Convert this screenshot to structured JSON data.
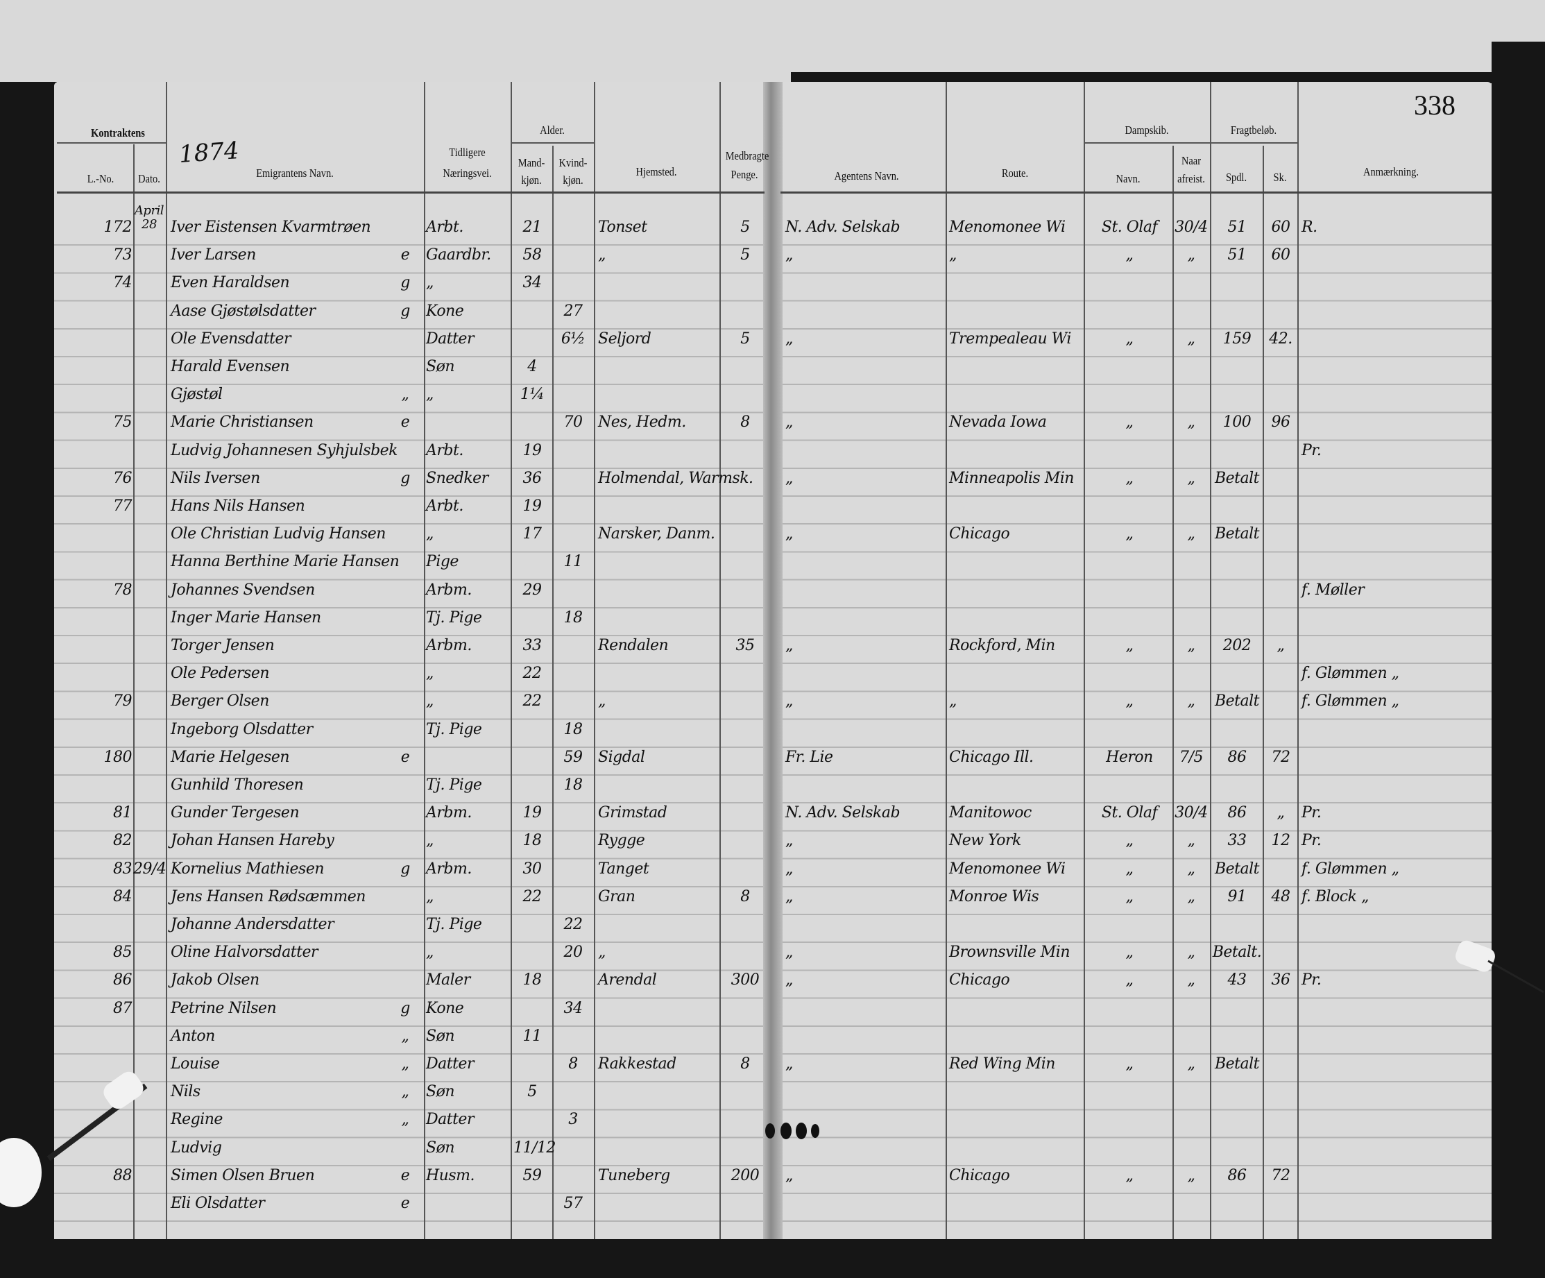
{
  "page_number": "338",
  "year": "1874",
  "headers": {
    "kontraktens": "Kontraktens",
    "l_no": "L.-No.",
    "dato": "Dato.",
    "navn": "Emigrantens Navn.",
    "tidligere": "Tidligere",
    "naeringsvei": "Næringsvei.",
    "alder": "Alder.",
    "mand": "Mand-",
    "mand2": "kjøn.",
    "kvind": "Kvind-",
    "kvind2": "kjøn.",
    "hjemsted": "Hjemsted.",
    "medbragte": "Medbragte",
    "penge": "Penge.",
    "agent": "Agentens Navn.",
    "route": "Route.",
    "dampskib": "Dampskib.",
    "skib_navn": "Navn.",
    "naar": "Naar",
    "afreist": "afreist.",
    "fragtbelob": "Fragtbeløb.",
    "spdl": "Spdl.",
    "sk": "Sk.",
    "anmaerkning": "Anmærkning."
  },
  "rows": [
    {
      "no": "172",
      "date": "April 28",
      "name": "Iver Eistensen Kvarmtrøen",
      "mark": "",
      "occ": "Arbt.",
      "male": "21",
      "female": "",
      "home": "Tonset",
      "money": "5",
      "agent": "N. Adv. Selskab",
      "route": "Menomonee Wi",
      "ship": "St. Olaf",
      "dep": "30/4",
      "spdl": "51",
      "sk": "60",
      "note": "R."
    },
    {
      "no": "73",
      "date": "",
      "name": "Iver Larsen",
      "mark": "e",
      "occ": "Gaardbr.",
      "male": "58",
      "female": "",
      "home": "„",
      "money": "5",
      "agent": "„",
      "route": "„",
      "ship": "„",
      "dep": "„",
      "spdl": "51",
      "sk": "60",
      "note": ""
    },
    {
      "no": "74",
      "date": "",
      "name": "Even Haraldsen",
      "mark": "g",
      "occ": "„",
      "male": "34",
      "female": "",
      "home": "",
      "money": "",
      "agent": "",
      "route": "",
      "ship": "",
      "dep": "",
      "spdl": "",
      "sk": "",
      "note": ""
    },
    {
      "no": "",
      "date": "",
      "name": "Aase Gjøstølsdatter",
      "mark": "g",
      "occ": "Kone",
      "male": "",
      "female": "27",
      "home": "",
      "money": "",
      "agent": "",
      "route": "",
      "ship": "",
      "dep": "",
      "spdl": "",
      "sk": "",
      "note": ""
    },
    {
      "no": "",
      "date": "",
      "name": "Ole Evensdatter",
      "mark": "",
      "occ": "Datter",
      "male": "",
      "female": "6½",
      "home": "Seljord",
      "money": "5",
      "agent": "„",
      "route": "Trempealeau Wi",
      "ship": "„",
      "dep": "„",
      "spdl": "159",
      "sk": "42.",
      "note": ""
    },
    {
      "no": "",
      "date": "",
      "name": "Harald Evensen",
      "mark": "",
      "occ": "Søn",
      "male": "4",
      "female": "",
      "home": "",
      "money": "",
      "agent": "",
      "route": "",
      "ship": "",
      "dep": "",
      "spdl": "",
      "sk": "",
      "note": ""
    },
    {
      "no": "",
      "date": "",
      "name": "Gjøstøl",
      "mark": "„",
      "occ": "„",
      "male": "1¼",
      "female": "",
      "home": "",
      "money": "",
      "agent": "",
      "route": "",
      "ship": "",
      "dep": "",
      "spdl": "",
      "sk": "",
      "note": ""
    },
    {
      "no": "75",
      "date": "",
      "name": "Marie Christiansen",
      "mark": "e",
      "occ": "",
      "male": "",
      "female": "70",
      "home": "Nes, Hedm.",
      "money": "8",
      "agent": "„",
      "route": "Nevada Iowa",
      "ship": "„",
      "dep": "„",
      "spdl": "100",
      "sk": "96",
      "note": ""
    },
    {
      "no": "",
      "date": "",
      "name": "Ludvig Johannesen Syhjulsbek",
      "mark": "",
      "occ": "Arbt.",
      "male": "19",
      "female": "",
      "home": "",
      "money": "",
      "agent": "",
      "route": "",
      "ship": "",
      "dep": "",
      "spdl": "",
      "sk": "",
      "note": "Pr."
    },
    {
      "no": "76",
      "date": "",
      "name": "Nils Iversen",
      "mark": "g",
      "occ": "Snedker",
      "male": "36",
      "female": "",
      "home": "Holmendal, Warmsk.",
      "money": "",
      "agent": "„",
      "route": "Minneapolis Min",
      "ship": "„",
      "dep": "„",
      "spdl": "Betalt",
      "sk": "",
      "note": ""
    },
    {
      "no": "77",
      "date": "",
      "name": "Hans Nils Hansen",
      "mark": "",
      "occ": "Arbt.",
      "male": "19",
      "female": "",
      "home": "",
      "money": "",
      "agent": "",
      "route": "",
      "ship": "",
      "dep": "",
      "spdl": "",
      "sk": "",
      "note": ""
    },
    {
      "no": "",
      "date": "",
      "name": "Ole Christian Ludvig Hansen",
      "mark": "",
      "occ": "„",
      "male": "17",
      "female": "",
      "home": "Narsker, Danm.",
      "money": "",
      "agent": "„",
      "route": "Chicago",
      "ship": "„",
      "dep": "„",
      "spdl": "Betalt",
      "sk": "",
      "note": ""
    },
    {
      "no": "",
      "date": "",
      "name": "Hanna Berthine Marie Hansen",
      "mark": "",
      "occ": "Pige",
      "male": "",
      "female": "11",
      "home": "",
      "money": "",
      "agent": "",
      "route": "",
      "ship": "",
      "dep": "",
      "spdl": "",
      "sk": "",
      "note": ""
    },
    {
      "no": "78",
      "date": "",
      "name": "Johannes Svendsen",
      "mark": "",
      "occ": "Arbm.",
      "male": "29",
      "female": "",
      "home": "",
      "money": "",
      "agent": "",
      "route": "",
      "ship": "",
      "dep": "",
      "spdl": "",
      "sk": "",
      "note": "f. Møller"
    },
    {
      "no": "",
      "date": "",
      "name": "Inger Marie Hansen",
      "mark": "",
      "occ": "Tj. Pige",
      "male": "",
      "female": "18",
      "home": "",
      "money": "",
      "agent": "",
      "route": "",
      "ship": "",
      "dep": "",
      "spdl": "",
      "sk": "",
      "note": ""
    },
    {
      "no": "",
      "date": "",
      "name": "Torger Jensen",
      "mark": "",
      "occ": "Arbm.",
      "male": "33",
      "female": "",
      "home": "Rendalen",
      "money": "35",
      "agent": "„",
      "route": "Rockford, Min",
      "ship": "„",
      "dep": "„",
      "spdl": "202",
      "sk": "„",
      "note": ""
    },
    {
      "no": "",
      "date": "",
      "name": "Ole Pedersen",
      "mark": "",
      "occ": "„",
      "male": "22",
      "female": "",
      "home": "",
      "money": "",
      "agent": "",
      "route": "",
      "ship": "",
      "dep": "",
      "spdl": "",
      "sk": "",
      "note": "f. Glømmen „"
    },
    {
      "no": "79",
      "date": "",
      "name": "Berger Olsen",
      "mark": "",
      "occ": "„",
      "male": "22",
      "female": "",
      "home": "„",
      "money": "",
      "agent": "„",
      "route": "„",
      "ship": "„",
      "dep": "„",
      "spdl": "Betalt",
      "sk": "",
      "note": "f. Glømmen „"
    },
    {
      "no": "",
      "date": "",
      "name": "Ingeborg Olsdatter",
      "mark": "",
      "occ": "Tj. Pige",
      "male": "",
      "female": "18",
      "home": "",
      "money": "",
      "agent": "",
      "route": "",
      "ship": "",
      "dep": "",
      "spdl": "",
      "sk": "",
      "note": ""
    },
    {
      "no": "180",
      "date": "",
      "name": "Marie Helgesen",
      "mark": "e",
      "occ": "",
      "male": "",
      "female": "59",
      "home": "Sigdal",
      "money": "",
      "agent": "Fr. Lie",
      "route": "Chicago Ill.",
      "ship": "Heron",
      "dep": "7/5",
      "spdl": "86",
      "sk": "72",
      "note": ""
    },
    {
      "no": "",
      "date": "",
      "name": "Gunhild Thoresen",
      "mark": "",
      "occ": "Tj. Pige",
      "male": "",
      "female": "18",
      "home": "",
      "money": "",
      "agent": "",
      "route": "",
      "ship": "",
      "dep": "",
      "spdl": "",
      "sk": "",
      "note": ""
    },
    {
      "no": "81",
      "date": "",
      "name": "Gunder Tergesen",
      "mark": "",
      "occ": "Arbm.",
      "male": "19",
      "female": "",
      "home": "Grimstad",
      "money": "",
      "agent": "N. Adv. Selskab",
      "route": "Manitowoc",
      "ship": "St. Olaf",
      "dep": "30/4",
      "spdl": "86",
      "sk": "„",
      "note": "Pr."
    },
    {
      "no": "82",
      "date": "",
      "name": "Johan Hansen Hareby",
      "mark": "",
      "occ": "„",
      "male": "18",
      "female": "",
      "home": "Rygge",
      "money": "",
      "agent": "„",
      "route": "New York",
      "ship": "„",
      "dep": "„",
      "spdl": "33",
      "sk": "12",
      "note": "Pr."
    },
    {
      "no": "83",
      "date": "29/4",
      "name": "Kornelius Mathiesen",
      "mark": "g",
      "occ": "Arbm.",
      "male": "30",
      "female": "",
      "home": "Tanget",
      "money": "",
      "agent": "„",
      "route": "Menomonee Wi",
      "ship": "„",
      "dep": "„",
      "spdl": "Betalt",
      "sk": "",
      "note": "f. Glømmen „"
    },
    {
      "no": "84",
      "date": "",
      "name": "Jens Hansen Rødsæmmen",
      "mark": "",
      "occ": "„",
      "male": "22",
      "female": "",
      "home": "Gran",
      "money": "8",
      "agent": "„",
      "route": "Monroe Wis",
      "ship": "„",
      "dep": "„",
      "spdl": "91",
      "sk": "48",
      "note": "f. Block „"
    },
    {
      "no": "",
      "date": "",
      "name": "Johanne Andersdatter",
      "mark": "",
      "occ": "Tj. Pige",
      "male": "",
      "female": "22",
      "home": "",
      "money": "",
      "agent": "",
      "route": "",
      "ship": "",
      "dep": "",
      "spdl": "",
      "sk": "",
      "note": ""
    },
    {
      "no": "85",
      "date": "",
      "name": "Oline Halvorsdatter",
      "mark": "",
      "occ": "„",
      "male": "",
      "female": "20",
      "home": "„",
      "money": "",
      "agent": "„",
      "route": "Brownsville Min",
      "ship": "„",
      "dep": "„",
      "spdl": "Betalt.",
      "sk": "",
      "note": ""
    },
    {
      "no": "86",
      "date": "",
      "name": "Jakob Olsen",
      "mark": "",
      "occ": "Maler",
      "male": "18",
      "female": "",
      "home": "Arendal",
      "money": "300",
      "agent": "„",
      "route": "Chicago",
      "ship": "„",
      "dep": "„",
      "spdl": "43",
      "sk": "36",
      "note": "Pr."
    },
    {
      "no": "87",
      "date": "",
      "name": "Petrine Nilsen",
      "mark": "g",
      "occ": "Kone",
      "male": "",
      "female": "34",
      "home": "",
      "money": "",
      "agent": "",
      "route": "",
      "ship": "",
      "dep": "",
      "spdl": "",
      "sk": "",
      "note": ""
    },
    {
      "no": "",
      "date": "",
      "name": "Anton",
      "mark": "„",
      "occ": "Søn",
      "male": "11",
      "female": "",
      "home": "",
      "money": "",
      "agent": "",
      "route": "",
      "ship": "",
      "dep": "",
      "spdl": "",
      "sk": "",
      "note": ""
    },
    {
      "no": "",
      "date": "",
      "name": "Louise",
      "mark": "„",
      "occ": "Datter",
      "male": "",
      "female": "8",
      "home": "Rakkestad",
      "money": "8",
      "agent": "„",
      "route": "Red Wing Min",
      "ship": "„",
      "dep": "„",
      "spdl": "Betalt",
      "sk": "",
      "note": ""
    },
    {
      "no": "",
      "date": "",
      "name": "Nils",
      "mark": "„",
      "occ": "Søn",
      "male": "5",
      "female": "",
      "home": "",
      "money": "",
      "agent": "",
      "route": "",
      "ship": "",
      "dep": "",
      "spdl": "",
      "sk": "",
      "note": ""
    },
    {
      "no": "",
      "date": "",
      "name": "Regine",
      "mark": "„",
      "occ": "Datter",
      "male": "",
      "female": "3",
      "home": "",
      "money": "",
      "agent": "",
      "route": "",
      "ship": "",
      "dep": "",
      "spdl": "",
      "sk": "",
      "note": ""
    },
    {
      "no": "",
      "date": "",
      "name": "Ludvig",
      "mark": "",
      "occ": "Søn",
      "male": "11/12",
      "female": "",
      "home": "",
      "money": "",
      "agent": "",
      "route": "",
      "ship": "",
      "dep": "",
      "spdl": "",
      "sk": "",
      "note": ""
    },
    {
      "no": "88",
      "date": "",
      "name": "Simen Olsen Bruen",
      "mark": "e",
      "occ": "Husm.",
      "male": "59",
      "female": "",
      "home": "Tuneberg",
      "money": "200",
      "agent": "„",
      "route": "Chicago",
      "ship": "„",
      "dep": "„",
      "spdl": "86",
      "sk": "72",
      "note": ""
    },
    {
      "no": "",
      "date": "",
      "name": "Eli Olsdatter",
      "mark": "e",
      "occ": "",
      "male": "",
      "female": "57",
      "home": "",
      "money": "",
      "agent": "",
      "route": "",
      "ship": "",
      "dep": "",
      "spdl": "",
      "sk": "",
      "note": ""
    }
  ]
}
